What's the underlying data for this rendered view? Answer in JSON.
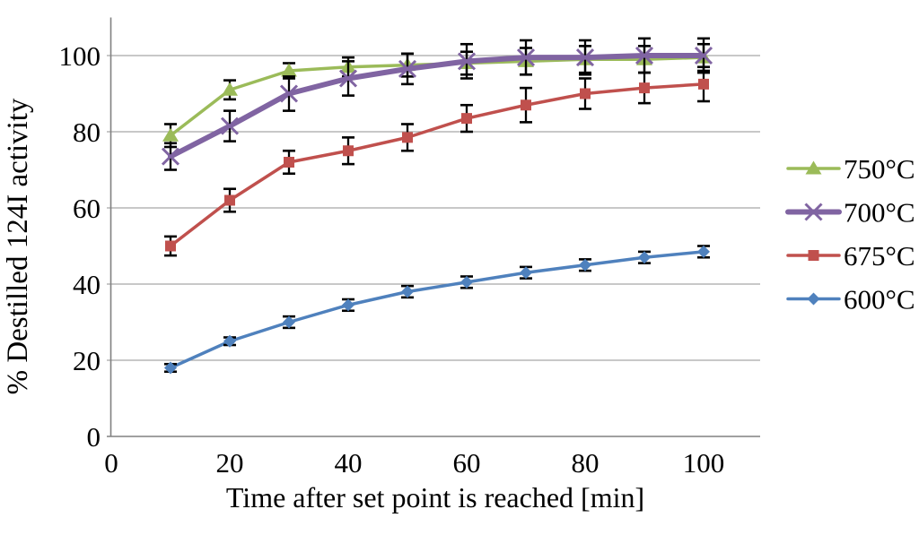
{
  "figure": {
    "background": "#FFFFFF"
  },
  "chart_data": {
    "type": "line",
    "title": "",
    "xlabel": "Time after set point is reached [min]",
    "ylabel": "% Destilled 124I  activity",
    "x": [
      10,
      20,
      30,
      40,
      50,
      60,
      70,
      80,
      90,
      100
    ],
    "xticks": [
      0,
      20,
      40,
      60,
      80,
      100
    ],
    "yticks": [
      0,
      20,
      40,
      60,
      80,
      100
    ],
    "xlim": [
      0,
      110
    ],
    "ylim": [
      0,
      110
    ],
    "grid": "horizontal-major",
    "gridline_color": "#A6A6A6",
    "axis_color": "#808080",
    "text_color": "#000000",
    "error_bar_color": "#000000",
    "legend_position": "right-middle",
    "series": [
      {
        "name": "750°C",
        "color": "#9BBB59",
        "marker": "triangle",
        "line_width": 3.5,
        "values": [
          79,
          91,
          96,
          97,
          97.5,
          98,
          98.5,
          99,
          99,
          99.5
        ],
        "errors": [
          3,
          2.5,
          2,
          2.5,
          3,
          3,
          3.5,
          3.5,
          3.5,
          3.5
        ]
      },
      {
        "name": "700°C",
        "color": "#8064A2",
        "marker": "x",
        "line_width": 6,
        "values": [
          73.5,
          81.5,
          90,
          94,
          96.5,
          98.5,
          99.5,
          99.5,
          100,
          100
        ],
        "errors": [
          3.5,
          4,
          4.5,
          4.5,
          4,
          4.5,
          4.5,
          4.5,
          4.5,
          4.5
        ]
      },
      {
        "name": "675°C",
        "color": "#C0504D",
        "marker": "square",
        "line_width": 3.5,
        "values": [
          50,
          62,
          72,
          75,
          78.5,
          83.5,
          87,
          90,
          91.5,
          92.5
        ],
        "errors": [
          2.5,
          3,
          3,
          3.5,
          3.5,
          3.5,
          4.5,
          4,
          4,
          4.5
        ]
      },
      {
        "name": "600°C",
        "color": "#4F81BD",
        "marker": "diamond",
        "line_width": 3.5,
        "values": [
          18,
          25,
          30,
          34.5,
          38,
          40.5,
          43,
          45,
          47,
          48.5
        ],
        "errors": [
          1,
          1,
          1.5,
          1.5,
          1.5,
          1.5,
          1.5,
          1.5,
          1.5,
          1.5
        ]
      }
    ]
  }
}
